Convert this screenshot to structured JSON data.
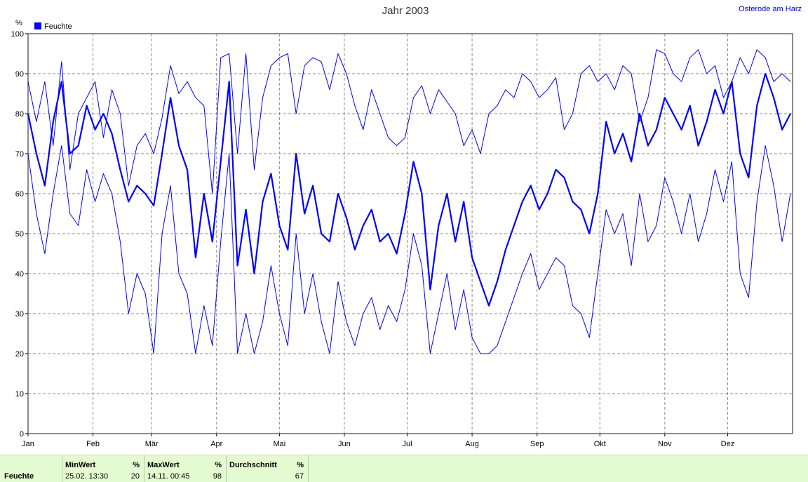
{
  "header": {
    "title": "Jahr 2003",
    "station": "Osterode am Harz",
    "y_unit": "%"
  },
  "legend": {
    "label": "Feuchte",
    "color": "#0000ff"
  },
  "colors": {
    "line": "#0000ff",
    "grid": "#888888",
    "stats_bg": "#e4fad0"
  },
  "chart_data": {
    "type": "line",
    "title": "Jahr 2003",
    "ylabel": "%",
    "ylim": [
      0,
      100
    ],
    "yticks": [
      0,
      10,
      20,
      30,
      40,
      50,
      60,
      70,
      80,
      90,
      100
    ],
    "xlim_days": [
      0,
      365
    ],
    "xticks": [
      {
        "label": "Jan",
        "day": 0
      },
      {
        "label": "Feb",
        "day": 31
      },
      {
        "label": "Mär",
        "day": 59
      },
      {
        "label": "Apr",
        "day": 90
      },
      {
        "label": "Mai",
        "day": 120
      },
      {
        "label": "Jun",
        "day": 151
      },
      {
        "label": "Jul",
        "day": 181
      },
      {
        "label": "Aug",
        "day": 212
      },
      {
        "label": "Sep",
        "day": 243
      },
      {
        "label": "Okt",
        "day": 273
      },
      {
        "label": "Nov",
        "day": 304
      },
      {
        "label": "Dez",
        "day": 334
      }
    ],
    "grid": true,
    "legend_position": "top-left",
    "series": [
      {
        "name": "Feuchte",
        "role": "max",
        "x": [
          0,
          4,
          8,
          12,
          16,
          20,
          24,
          28,
          32,
          36,
          40,
          44,
          48,
          52,
          56,
          60,
          64,
          68,
          72,
          76,
          80,
          84,
          88,
          92,
          96,
          100,
          104,
          108,
          112,
          116,
          120,
          124,
          128,
          132,
          136,
          140,
          144,
          148,
          152,
          156,
          160,
          164,
          168,
          172,
          176,
          180,
          184,
          188,
          192,
          196,
          200,
          204,
          208,
          212,
          216,
          220,
          224,
          228,
          232,
          236,
          240,
          244,
          248,
          252,
          256,
          260,
          264,
          268,
          272,
          276,
          280,
          284,
          288,
          292,
          296,
          300,
          304,
          308,
          312,
          316,
          320,
          324,
          328,
          332,
          336,
          340,
          344,
          348,
          352,
          356,
          360,
          364
        ],
        "y": [
          88,
          78,
          88,
          72,
          93,
          66,
          80,
          84,
          88,
          74,
          86,
          80,
          62,
          72,
          75,
          70,
          79,
          92,
          85,
          88,
          84,
          82,
          60,
          94,
          95,
          70,
          95,
          66,
          84,
          92,
          94,
          95,
          80,
          92,
          94,
          93,
          86,
          95,
          90,
          82,
          76,
          86,
          80,
          74,
          72,
          74,
          84,
          87,
          80,
          86,
          83,
          80,
          72,
          76,
          70,
          80,
          82,
          86,
          84,
          90,
          88,
          84,
          86,
          89,
          76,
          80,
          90,
          92,
          88,
          90,
          86,
          92,
          90,
          78,
          84,
          96,
          95,
          90,
          88,
          94,
          96,
          90,
          92,
          84,
          88,
          94,
          90,
          96,
          94,
          88,
          90,
          88
        ]
      },
      {
        "name": "Feuchte",
        "role": "mean",
        "x": [
          0,
          4,
          8,
          12,
          16,
          20,
          24,
          28,
          32,
          36,
          40,
          44,
          48,
          52,
          56,
          60,
          64,
          68,
          72,
          76,
          80,
          84,
          88,
          92,
          96,
          100,
          104,
          108,
          112,
          116,
          120,
          124,
          128,
          132,
          136,
          140,
          144,
          148,
          152,
          156,
          160,
          164,
          168,
          172,
          176,
          180,
          184,
          188,
          192,
          196,
          200,
          204,
          208,
          212,
          216,
          220,
          224,
          228,
          232,
          236,
          240,
          244,
          248,
          252,
          256,
          260,
          264,
          268,
          272,
          276,
          280,
          284,
          288,
          292,
          296,
          300,
          304,
          308,
          312,
          316,
          320,
          324,
          328,
          332,
          336,
          340,
          344,
          348,
          352,
          356,
          360,
          364
        ],
        "y": [
          80,
          70,
          62,
          78,
          88,
          70,
          72,
          82,
          76,
          80,
          75,
          66,
          58,
          62,
          60,
          57,
          70,
          84,
          72,
          66,
          44,
          60,
          48,
          68,
          88,
          42,
          56,
          40,
          58,
          65,
          52,
          46,
          70,
          55,
          62,
          50,
          48,
          60,
          54,
          46,
          52,
          56,
          48,
          50,
          45,
          55,
          68,
          60,
          36,
          52,
          60,
          48,
          58,
          44,
          38,
          32,
          38,
          46,
          52,
          58,
          62,
          56,
          60,
          66,
          64,
          58,
          56,
          50,
          60,
          78,
          70,
          75,
          68,
          80,
          72,
          76,
          84,
          80,
          76,
          82,
          72,
          78,
          86,
          80,
          88,
          70,
          64,
          82,
          90,
          84,
          76,
          80
        ]
      },
      {
        "name": "Feuchte",
        "role": "min",
        "x": [
          0,
          4,
          8,
          12,
          16,
          20,
          24,
          28,
          32,
          36,
          40,
          44,
          48,
          52,
          56,
          60,
          64,
          68,
          72,
          76,
          80,
          84,
          88,
          92,
          96,
          100,
          104,
          108,
          112,
          116,
          120,
          124,
          128,
          132,
          136,
          140,
          144,
          148,
          152,
          156,
          160,
          164,
          168,
          172,
          176,
          180,
          184,
          188,
          192,
          196,
          200,
          204,
          208,
          212,
          216,
          220,
          224,
          228,
          232,
          236,
          240,
          244,
          248,
          252,
          256,
          260,
          264,
          268,
          272,
          276,
          280,
          284,
          288,
          292,
          296,
          300,
          304,
          308,
          312,
          316,
          320,
          324,
          328,
          332,
          336,
          340,
          344,
          348,
          352,
          356,
          360,
          364
        ],
        "y": [
          70,
          55,
          45,
          60,
          72,
          55,
          52,
          66,
          58,
          65,
          60,
          48,
          30,
          40,
          35,
          20,
          50,
          62,
          40,
          35,
          20,
          32,
          22,
          48,
          70,
          20,
          30,
          20,
          28,
          42,
          30,
          22,
          50,
          30,
          40,
          28,
          20,
          38,
          28,
          22,
          30,
          34,
          26,
          32,
          28,
          36,
          50,
          42,
          20,
          30,
          40,
          26,
          36,
          24,
          20,
          20,
          22,
          28,
          34,
          40,
          45,
          36,
          40,
          44,
          42,
          32,
          30,
          24,
          40,
          56,
          50,
          55,
          42,
          60,
          48,
          52,
          64,
          58,
          50,
          60,
          48,
          55,
          66,
          58,
          68,
          40,
          34,
          58,
          72,
          62,
          48,
          60
        ]
      }
    ]
  },
  "stats": {
    "row_label": "Feuchte",
    "min": {
      "header": "MinWert",
      "unit": "%",
      "datetime": "25.02.  13:30",
      "value": "20"
    },
    "max": {
      "header": "MaxWert",
      "unit": "%",
      "datetime": "14.11.  00:45",
      "value": "98"
    },
    "avg": {
      "header": "Durchschnitt",
      "unit": "%",
      "value": "67"
    }
  }
}
